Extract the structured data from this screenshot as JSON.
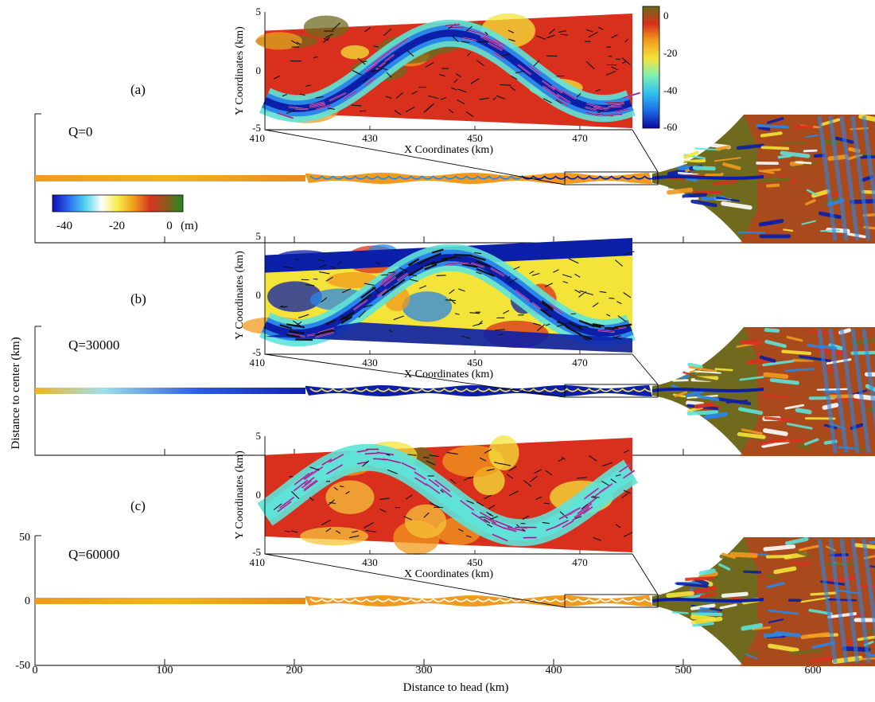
{
  "panels": [
    {
      "letter": "(a)",
      "q_label": "Q=0"
    },
    {
      "letter": "(b)",
      "q_label": "Q=30000"
    },
    {
      "letter": "(c)",
      "q_label": "Q=60000"
    }
  ],
  "main_axes": {
    "xlabel": "Distance to head (km)",
    "ylabel": "Distance to center (km)",
    "xticks": [
      "0",
      "100",
      "200",
      "300",
      "400",
      "500",
      "600"
    ],
    "yticks_bottom": [
      "50",
      "0",
      "-50"
    ]
  },
  "main_colorbar": {
    "ticks": [
      "-40",
      "-20",
      "0"
    ],
    "unit": "(m)",
    "stops": [
      "#1010b0",
      "#2d6bf0",
      "#4fd3ef",
      "#ffffff",
      "#f7ec4a",
      "#f19b1e",
      "#d43522",
      "#8a5a1c",
      "#1e8a22"
    ]
  },
  "inset_axes": {
    "xlabel": "X Coordinates (km)",
    "ylabel": "Y Coordinates (km)",
    "xticks": [
      "410",
      "430",
      "450",
      "470"
    ],
    "yticks": [
      "5",
      "0",
      "-5"
    ]
  },
  "inset_colorbar": {
    "ticks": [
      "0",
      "-20",
      "-40",
      "-60"
    ],
    "stops": [
      "#6b6b1e",
      "#d8301d",
      "#f0a01e",
      "#f4e43a",
      "#7ef0b4",
      "#2fc0f0",
      "#1e6ae6",
      "#0a0aa0"
    ]
  },
  "colors": {
    "deep": "#0b1fa8",
    "mid_blue": "#2a86e8",
    "cyan": "#5fe3d8",
    "yellow": "#f4e43a",
    "orange": "#f29a1e",
    "red": "#d8301d",
    "olive": "#6f6a1e",
    "arrow_black": "#111111",
    "arrow_magenta": "#d05ad0"
  },
  "chart_data": [
    {
      "type": "heatmap",
      "panel": "(a)",
      "annotation": "Q=0",
      "xlabel": "Distance to head (km)",
      "ylabel": "Distance to center (km)",
      "xlim": [
        0,
        650
      ],
      "ylim": [
        -50,
        50
      ],
      "colorbar_range_m": [
        -45,
        2
      ]
    },
    {
      "type": "heatmap",
      "panel": "(b)",
      "annotation": "Q=30000",
      "xlabel": "Distance to head (km)",
      "ylabel": "Distance to center (km)",
      "xlim": [
        0,
        650
      ],
      "ylim": [
        -50,
        50
      ]
    },
    {
      "type": "heatmap",
      "panel": "(c)",
      "annotation": "Q=60000",
      "xlabel": "Distance to head (km)",
      "ylabel": "Distance to center (km)",
      "xlim": [
        0,
        650
      ],
      "ylim": [
        -50,
        50
      ]
    },
    {
      "type": "heatmap",
      "panel": "inset",
      "xlabel": "X Coordinates (km)",
      "ylabel": "Y Coordinates (km)",
      "xlim": [
        410,
        480
      ],
      "ylim": [
        -5,
        5
      ],
      "colorbar_range_m": [
        -62,
        4
      ]
    }
  ]
}
